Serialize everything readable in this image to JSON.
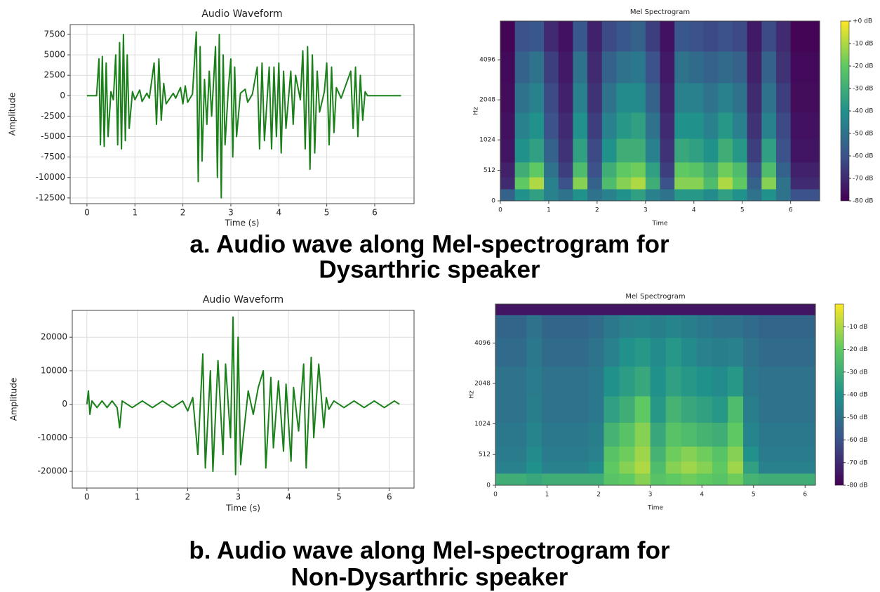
{
  "chart_data": [
    {
      "type": "line",
      "title": "Audio Waveform",
      "x_label": "Time (s)",
      "y_label": "Amplitude",
      "color": "#1a8019",
      "grid": true,
      "xlim": [
        -0.35,
        6.82
      ],
      "ylim": [
        -13200,
        8700
      ],
      "xticks": [
        0,
        1,
        2,
        3,
        4,
        5,
        6
      ],
      "yticks": [
        -12500,
        -10000,
        -7500,
        -5000,
        -2500,
        0,
        2500,
        5000,
        7500
      ],
      "x": [
        0,
        0.2,
        0.25,
        0.28,
        0.32,
        0.36,
        0.4,
        0.44,
        0.5,
        0.55,
        0.6,
        0.64,
        0.68,
        0.72,
        0.76,
        0.8,
        0.84,
        0.88,
        0.95,
        1.0,
        1.1,
        1.15,
        1.25,
        1.3,
        1.4,
        1.45,
        1.5,
        1.55,
        1.6,
        1.65,
        1.8,
        1.85,
        1.95,
        2.0,
        2.05,
        2.1,
        2.2,
        2.28,
        2.32,
        2.36,
        2.4,
        2.45,
        2.5,
        2.55,
        2.6,
        2.68,
        2.72,
        2.76,
        2.8,
        2.84,
        2.88,
        2.95,
        3.0,
        3.04,
        3.08,
        3.12,
        3.2,
        3.3,
        3.35,
        3.45,
        3.55,
        3.6,
        3.65,
        3.7,
        3.8,
        3.85,
        3.9,
        3.95,
        4.0,
        4.05,
        4.1,
        4.15,
        4.25,
        4.3,
        4.35,
        4.45,
        4.5,
        4.55,
        4.6,
        4.65,
        4.7,
        4.75,
        4.8,
        4.85,
        4.95,
        5.0,
        5.05,
        5.1,
        5.15,
        5.2,
        5.3,
        5.5,
        5.55,
        5.6,
        5.65,
        5.7,
        5.75,
        5.8,
        5.85,
        6.55
      ],
      "values": [
        0,
        0,
        4500,
        -6000,
        4800,
        -6200,
        4000,
        -5000,
        500,
        -500,
        5000,
        -6000,
        6500,
        -6500,
        7500,
        -5500,
        5000,
        -4000,
        500,
        -500,
        700,
        -700,
        300,
        -300,
        4000,
        -3500,
        4500,
        -3000,
        1500,
        -1000,
        300,
        -300,
        1000,
        -1000,
        1200,
        -800,
        200,
        7800,
        -10500,
        6000,
        -8000,
        2000,
        -3500,
        3000,
        -2500,
        6000,
        -10000,
        7500,
        -12500,
        5000,
        -6000,
        1000,
        4500,
        -7500,
        3500,
        -5000,
        300,
        800,
        -800,
        200,
        3500,
        -6500,
        4000,
        -5500,
        3500,
        -6500,
        3500,
        -5000,
        4000,
        -7000,
        3000,
        -4000,
        3000,
        -3500,
        2500,
        -500,
        5500,
        -6500,
        6000,
        -9000,
        5000,
        -7000,
        3000,
        -2000,
        500,
        4000,
        -6000,
        3500,
        -4500,
        1000,
        -300,
        3000,
        -4000,
        3500,
        -5000,
        2500,
        -3000,
        500,
        0,
        0
      ]
    },
    {
      "type": "heatmap",
      "title": "Mel Spectrogram",
      "x_label": "Time",
      "y_label": "Hz",
      "yscale": "mel",
      "colormap": "viridis",
      "xlim": [
        0,
        6.6
      ],
      "ylim": [
        0,
        8000
      ],
      "xticks": [
        0,
        1,
        2,
        3,
        4,
        5,
        6
      ],
      "yticks": [
        0,
        512,
        1024,
        2048,
        4096
      ],
      "clim": [
        -80,
        0
      ],
      "cticks": [
        {
          "value": 0,
          "label": "+0 dB"
        },
        {
          "value": -10,
          "label": "-10 dB"
        },
        {
          "value": -20,
          "label": "-20 dB"
        },
        {
          "value": -30,
          "label": "-30 dB"
        },
        {
          "value": -40,
          "label": "-40 dB"
        },
        {
          "value": -50,
          "label": "-50 dB"
        },
        {
          "value": -60,
          "label": "-60 dB"
        },
        {
          "value": -70,
          "label": "-70 dB"
        },
        {
          "value": -80,
          "label": "-80 dB"
        }
      ],
      "x": [
        0.15,
        0.45,
        0.75,
        1.05,
        1.35,
        1.65,
        1.95,
        2.25,
        2.55,
        2.85,
        3.15,
        3.45,
        3.75,
        4.05,
        4.35,
        4.65,
        4.95,
        5.25,
        5.55,
        5.85,
        6.15,
        6.45
      ],
      "y": [
        100,
        300,
        500,
        800,
        1300,
        2000,
        3500,
        6000
      ],
      "z": [
        [
          -55,
          -40,
          -35,
          -45,
          -50,
          -40,
          -50,
          -45,
          -40,
          -35,
          -45,
          -50,
          -38,
          -38,
          -42,
          -35,
          -40,
          -50,
          -40,
          -50,
          -60,
          -60
        ],
        [
          -70,
          -20,
          -10,
          -45,
          -60,
          -15,
          -55,
          -25,
          -15,
          -10,
          -30,
          -60,
          -15,
          -15,
          -25,
          -10,
          -20,
          -55,
          -15,
          -50,
          -70,
          -70
        ],
        [
          -72,
          -30,
          -20,
          -50,
          -65,
          -25,
          -60,
          -30,
          -20,
          -18,
          -35,
          -65,
          -20,
          -22,
          -30,
          -18,
          -25,
          -60,
          -25,
          -55,
          -72,
          -72
        ],
        [
          -75,
          -40,
          -35,
          -55,
          -68,
          -35,
          -62,
          -40,
          -30,
          -30,
          -45,
          -68,
          -32,
          -35,
          -40,
          -30,
          -38,
          -65,
          -35,
          -60,
          -75,
          -75
        ],
        [
          -76,
          -45,
          -40,
          -60,
          -70,
          -40,
          -65,
          -45,
          -38,
          -35,
          -50,
          -70,
          -40,
          -40,
          -45,
          -38,
          -45,
          -68,
          -45,
          -62,
          -76,
          -76
        ],
        [
          -77,
          -50,
          -45,
          -62,
          -72,
          -45,
          -68,
          -50,
          -42,
          -42,
          -55,
          -72,
          -45,
          -45,
          -50,
          -45,
          -50,
          -70,
          -50,
          -65,
          -77,
          -77
        ],
        [
          -78,
          -55,
          -50,
          -65,
          -74,
          -50,
          -70,
          -55,
          -50,
          -48,
          -60,
          -74,
          -50,
          -52,
          -55,
          -52,
          -55,
          -72,
          -55,
          -68,
          -78,
          -78
        ],
        [
          -79,
          -60,
          -58,
          -70,
          -76,
          -58,
          -72,
          -62,
          -58,
          -55,
          -65,
          -76,
          -58,
          -60,
          -62,
          -60,
          -62,
          -74,
          -62,
          -70,
          -79,
          -79
        ]
      ]
    },
    {
      "type": "line",
      "title": "Audio Waveform",
      "x_label": "Time (s)",
      "y_label": "Amplitude",
      "color": "#1a8019",
      "grid": true,
      "xlim": [
        -0.29,
        6.49
      ],
      "ylim": [
        -25000,
        28000
      ],
      "xticks": [
        0,
        1,
        2,
        3,
        4,
        5,
        6
      ],
      "yticks": [
        -20000,
        -10000,
        0,
        10000,
        20000
      ],
      "x": [
        0,
        0.03,
        0.06,
        0.1,
        0.2,
        0.3,
        0.4,
        0.5,
        0.6,
        0.65,
        0.7,
        0.9,
        1.1,
        1.3,
        1.5,
        1.7,
        1.9,
        2.0,
        2.1,
        2.2,
        2.3,
        2.35,
        2.45,
        2.5,
        2.6,
        2.7,
        2.75,
        2.85,
        2.9,
        2.95,
        3.0,
        3.05,
        3.1,
        3.2,
        3.3,
        3.4,
        3.5,
        3.55,
        3.65,
        3.7,
        3.8,
        3.9,
        3.95,
        4.05,
        4.1,
        4.2,
        4.3,
        4.35,
        4.45,
        4.5,
        4.6,
        4.7,
        4.75,
        4.8,
        4.9,
        5.1,
        5.3,
        5.5,
        5.7,
        5.9,
        6.1,
        6.2
      ],
      "values": [
        0,
        4000,
        -3000,
        1000,
        -1000,
        1000,
        -1000,
        1000,
        -1000,
        -7000,
        1000,
        -1000,
        1000,
        -1000,
        1000,
        -1000,
        1000,
        -2000,
        2000,
        -15000,
        15000,
        -19000,
        10000,
        -20000,
        13000,
        -15000,
        12000,
        -10000,
        26000,
        -21000,
        20000,
        -18000,
        -10000,
        4000,
        -3000,
        5000,
        10000,
        -19000,
        8000,
        -13000,
        7000,
        -14000,
        6000,
        -17000,
        5000,
        -8000,
        12000,
        -19000,
        14000,
        -10000,
        12000,
        -7000,
        2000,
        -1500,
        1000,
        -1000,
        1000,
        -1000,
        1000,
        -1000,
        1000,
        0
      ]
    },
    {
      "type": "heatmap",
      "title": "Mel Spectrogram",
      "x_label": "Time",
      "y_label": "Hz",
      "yscale": "mel",
      "colormap": "viridis",
      "xlim": [
        0,
        6.2
      ],
      "ylim": [
        0,
        8000
      ],
      "xticks": [
        0,
        1,
        2,
        3,
        4,
        5,
        6
      ],
      "yticks": [
        0,
        512,
        1024,
        2048,
        4096
      ],
      "clim": [
        -80,
        0
      ],
      "cticks": [
        {
          "value": -10,
          "label": "-10 dB"
        },
        {
          "value": -20,
          "label": "-20 dB"
        },
        {
          "value": -30,
          "label": "-30 dB"
        },
        {
          "value": -40,
          "label": "-40 dB"
        },
        {
          "value": -50,
          "label": "-50 dB"
        },
        {
          "value": -60,
          "label": "-60 dB"
        },
        {
          "value": -70,
          "label": "-70 dB"
        },
        {
          "value": -80,
          "label": "-80 dB"
        }
      ],
      "x": [
        0.15,
        0.45,
        0.75,
        1.05,
        1.35,
        1.65,
        1.95,
        2.25,
        2.55,
        2.85,
        3.15,
        3.45,
        3.75,
        4.05,
        4.35,
        4.65,
        4.95,
        5.25,
        5.55,
        5.85,
        6.15
      ],
      "y": [
        100,
        300,
        500,
        800,
        1300,
        2000,
        3500,
        5500,
        7800
      ],
      "z": [
        [
          -30,
          -30,
          -32,
          -30,
          -30,
          -30,
          -30,
          -22,
          -20,
          -15,
          -22,
          -20,
          -18,
          -20,
          -22,
          -18,
          -28,
          -30,
          -30,
          -30,
          -30
        ],
        [
          -45,
          -45,
          -40,
          -45,
          -45,
          -45,
          -42,
          -20,
          -15,
          -10,
          -25,
          -15,
          -12,
          -15,
          -20,
          -12,
          -35,
          -45,
          -45,
          -45,
          -45
        ],
        [
          -47,
          -47,
          -42,
          -47,
          -47,
          -47,
          -45,
          -22,
          -18,
          -12,
          -28,
          -18,
          -15,
          -18,
          -22,
          -15,
          -40,
          -47,
          -47,
          -47,
          -47
        ],
        [
          -48,
          -48,
          -44,
          -48,
          -48,
          -48,
          -46,
          -28,
          -22,
          -15,
          -32,
          -22,
          -25,
          -28,
          -30,
          -20,
          -44,
          -48,
          -48,
          -48,
          -48
        ],
        [
          -50,
          -50,
          -46,
          -50,
          -50,
          -50,
          -48,
          -35,
          -30,
          -20,
          -38,
          -28,
          -32,
          -35,
          -38,
          -25,
          -46,
          -50,
          -50,
          -50,
          -50
        ],
        [
          -50,
          -50,
          -47,
          -50,
          -50,
          -50,
          -48,
          -40,
          -36,
          -32,
          -40,
          -35,
          -38,
          -40,
          -42,
          -38,
          -48,
          -50,
          -50,
          -50,
          -50
        ],
        [
          -52,
          -52,
          -48,
          -52,
          -52,
          -52,
          -50,
          -45,
          -40,
          -38,
          -42,
          -38,
          -42,
          -45,
          -46,
          -45,
          -50,
          -52,
          -52,
          -52,
          -52
        ],
        [
          -54,
          -54,
          -50,
          -54,
          -54,
          -54,
          -52,
          -48,
          -45,
          -44,
          -46,
          -44,
          -46,
          -48,
          -50,
          -50,
          -52,
          -54,
          -54,
          -54,
          -54
        ],
        [
          -75,
          -75,
          -75,
          -75,
          -75,
          -75,
          -75,
          -75,
          -75,
          -75,
          -75,
          -75,
          -75,
          -75,
          -75,
          -75,
          -75,
          -75,
          -75,
          -75,
          -75
        ]
      ]
    }
  ],
  "captions": [
    [
      "a. Audio wave along Mel-spectrogram for",
      "Dysarthric speaker"
    ],
    [
      "b. Audio wave along Mel-spectrogram for",
      "Non-Dysarthric speaker"
    ]
  ]
}
